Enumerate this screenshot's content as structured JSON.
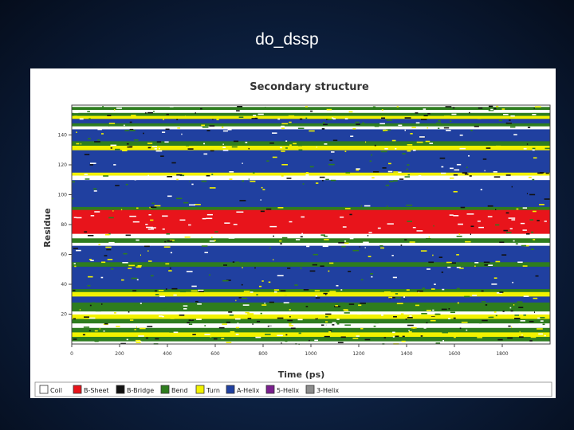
{
  "slide": {
    "title": "do_dssp"
  },
  "chart_data": {
    "type": "heatmap",
    "title": "Secondary structure",
    "xlabel": "Time (ps)",
    "ylabel": "Residue",
    "xlim": [
      0,
      2000
    ],
    "ylim": [
      0,
      160
    ],
    "x_ticks": [
      "0",
      "200",
      "400",
      "600",
      "800",
      "1000",
      "1200",
      "1400",
      "1600",
      "1800"
    ],
    "y_ticks": [
      "20",
      "40",
      "60",
      "80",
      "100",
      "120",
      "140"
    ],
    "legend": [
      {
        "label": "Coil",
        "color": "#ffffff"
      },
      {
        "label": "B-Sheet",
        "color": "#e8141b"
      },
      {
        "label": "B-Bridge",
        "color": "#111111"
      },
      {
        "label": "Bend",
        "color": "#2e7d1f"
      },
      {
        "label": "Turn",
        "color": "#f2f200"
      },
      {
        "label": "A-Helix",
        "color": "#2040a0"
      },
      {
        "label": "5-Helix",
        "color": "#7a1f8f"
      },
      {
        "label": "3-Helix",
        "color": "#8c8c8c"
      }
    ],
    "bands": [
      {
        "from": 0,
        "to": 2,
        "structure": "Coil",
        "color": "#ffffff"
      },
      {
        "from": 2,
        "to": 5,
        "structure": "Bend",
        "color": "#2e7d1f"
      },
      {
        "from": 5,
        "to": 8,
        "structure": "Turn",
        "color": "#f2f200"
      },
      {
        "from": 8,
        "to": 11,
        "structure": "Bend",
        "color": "#2e7d1f"
      },
      {
        "from": 11,
        "to": 14,
        "structure": "Coil",
        "color": "#ffffff"
      },
      {
        "from": 14,
        "to": 17,
        "structure": "Bend",
        "color": "#2e7d1f"
      },
      {
        "from": 17,
        "to": 20,
        "structure": "Turn",
        "color": "#f2f200"
      },
      {
        "from": 20,
        "to": 22,
        "structure": "Coil",
        "color": "#ffffff"
      },
      {
        "from": 22,
        "to": 28,
        "structure": "Bend",
        "color": "#2e7d1f"
      },
      {
        "from": 28,
        "to": 32,
        "structure": "A-Helix",
        "color": "#2040a0"
      },
      {
        "from": 32,
        "to": 35,
        "structure": "Turn",
        "color": "#f2f200"
      },
      {
        "from": 35,
        "to": 37,
        "structure": "Bend",
        "color": "#2e7d1f"
      },
      {
        "from": 37,
        "to": 52,
        "structure": "A-Helix",
        "color": "#2040a0"
      },
      {
        "from": 52,
        "to": 55,
        "structure": "Bend",
        "color": "#2e7d1f"
      },
      {
        "from": 55,
        "to": 66,
        "structure": "A-Helix",
        "color": "#2040a0"
      },
      {
        "from": 66,
        "to": 68,
        "structure": "Coil",
        "color": "#ffffff"
      },
      {
        "from": 68,
        "to": 71,
        "structure": "Bend",
        "color": "#2e7d1f"
      },
      {
        "from": 71,
        "to": 74,
        "structure": "Coil",
        "color": "#ffffff"
      },
      {
        "from": 74,
        "to": 90,
        "structure": "B-Sheet",
        "color": "#e8141b"
      },
      {
        "from": 90,
        "to": 92,
        "structure": "Bend",
        "color": "#2e7d1f"
      },
      {
        "from": 92,
        "to": 110,
        "structure": "A-Helix",
        "color": "#2040a0"
      },
      {
        "from": 110,
        "to": 113,
        "structure": "Coil",
        "color": "#ffffff"
      },
      {
        "from": 113,
        "to": 115,
        "structure": "Turn",
        "color": "#f2f200"
      },
      {
        "from": 115,
        "to": 130,
        "structure": "A-Helix",
        "color": "#2040a0"
      },
      {
        "from": 130,
        "to": 133,
        "structure": "Turn",
        "color": "#f2f200"
      },
      {
        "from": 133,
        "to": 136,
        "structure": "Bend",
        "color": "#2e7d1f"
      },
      {
        "from": 136,
        "to": 144,
        "structure": "A-Helix",
        "color": "#2040a0"
      },
      {
        "from": 144,
        "to": 146,
        "structure": "Coil",
        "color": "#ffffff"
      },
      {
        "from": 146,
        "to": 148,
        "structure": "Bend",
        "color": "#2e7d1f"
      },
      {
        "from": 148,
        "to": 151,
        "structure": "A-Helix",
        "color": "#2040a0"
      },
      {
        "from": 151,
        "to": 153,
        "structure": "Turn",
        "color": "#f2f200"
      },
      {
        "from": 153,
        "to": 155,
        "structure": "Bend",
        "color": "#2e7d1f"
      },
      {
        "from": 155,
        "to": 157,
        "structure": "Coil",
        "color": "#ffffff"
      },
      {
        "from": 157,
        "to": 159,
        "structure": "Bend",
        "color": "#2e7d1f"
      },
      {
        "from": 159,
        "to": 160,
        "structure": "Coil",
        "color": "#ffffff"
      }
    ],
    "noise_structures": [
      {
        "structure": "Coil",
        "color": "#ffffff"
      },
      {
        "structure": "Bend",
        "color": "#2e7d1f"
      },
      {
        "structure": "Turn",
        "color": "#f2f200"
      },
      {
        "structure": "B-Bridge",
        "color": "#111111"
      }
    ]
  }
}
